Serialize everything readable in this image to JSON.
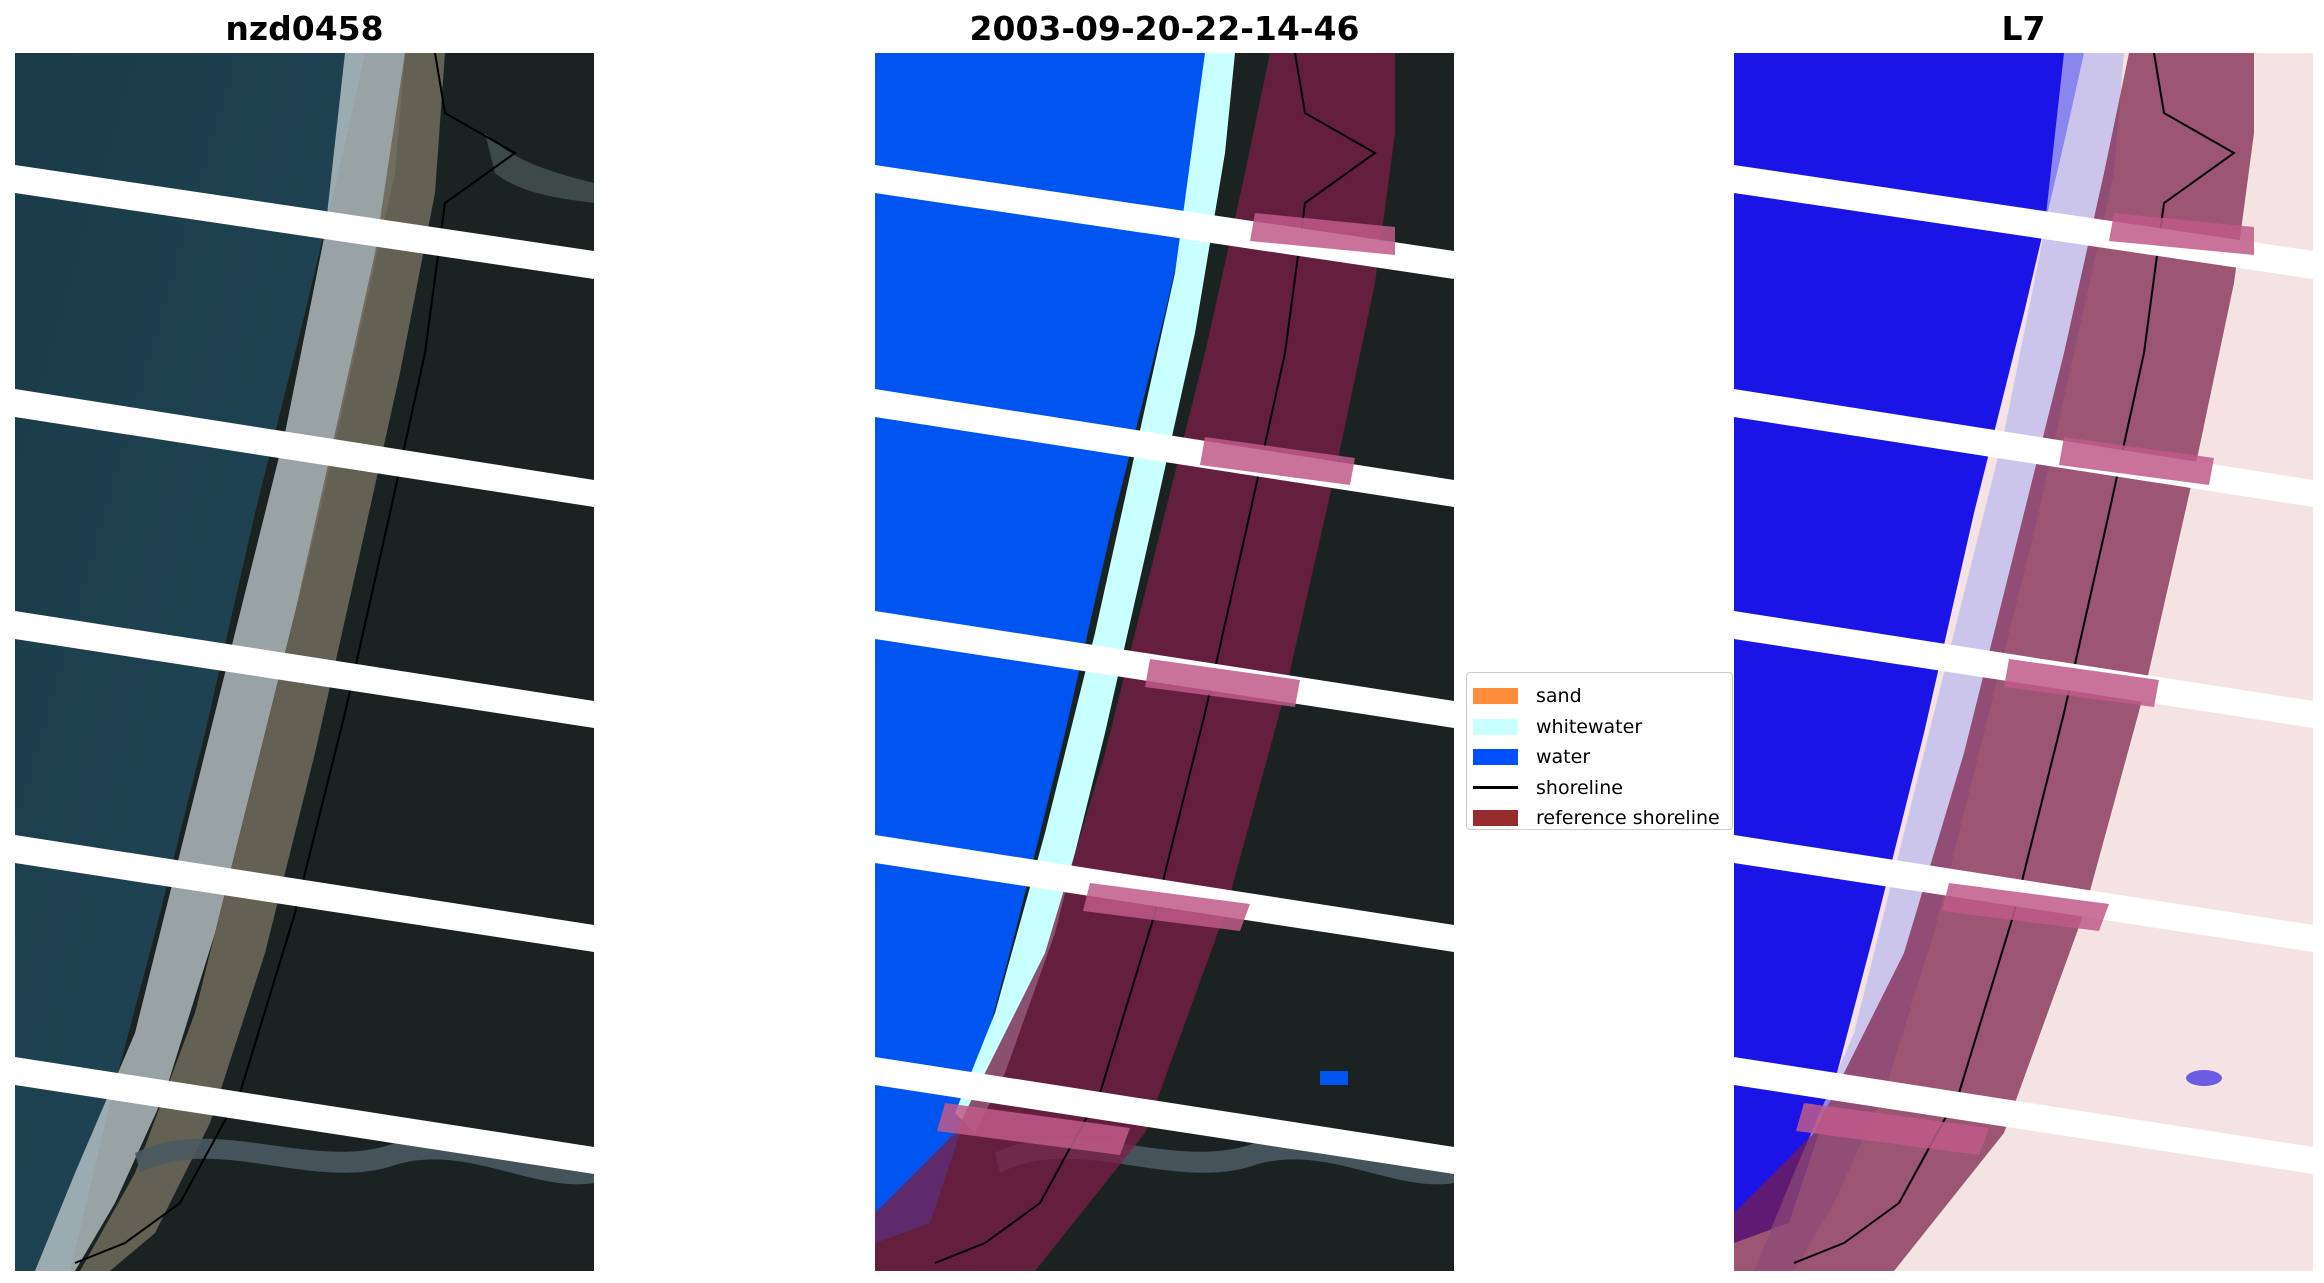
{
  "panels": [
    {
      "title": "nzd0458"
    },
    {
      "title": "2003-09-20-22-14-46"
    },
    {
      "title": "L7"
    }
  ],
  "legend": {
    "items": [
      {
        "label": "sand",
        "color": "#ff8c3a",
        "kind": "patch"
      },
      {
        "label": "whitewater",
        "color": "#c8ffff",
        "kind": "patch"
      },
      {
        "label": "water",
        "color": "#0050ff",
        "kind": "patch"
      },
      {
        "label": "shoreline",
        "color": "#000000",
        "kind": "line"
      },
      {
        "label": "reference shoreline",
        "color": "#962b2b",
        "kind": "patch"
      }
    ]
  },
  "colors": {
    "ocean": "#1f3f4c",
    "forest": "#1b2422",
    "beach": "#6f6a5c",
    "surf": "#c9d3d6",
    "water_class": "#0055f0",
    "whitewater_class": "#c8ffff",
    "reference_band": "#7a1f46",
    "index_water": "#1a14e6",
    "index_land": "#f5e3e3",
    "stripe": "#ffffff"
  }
}
